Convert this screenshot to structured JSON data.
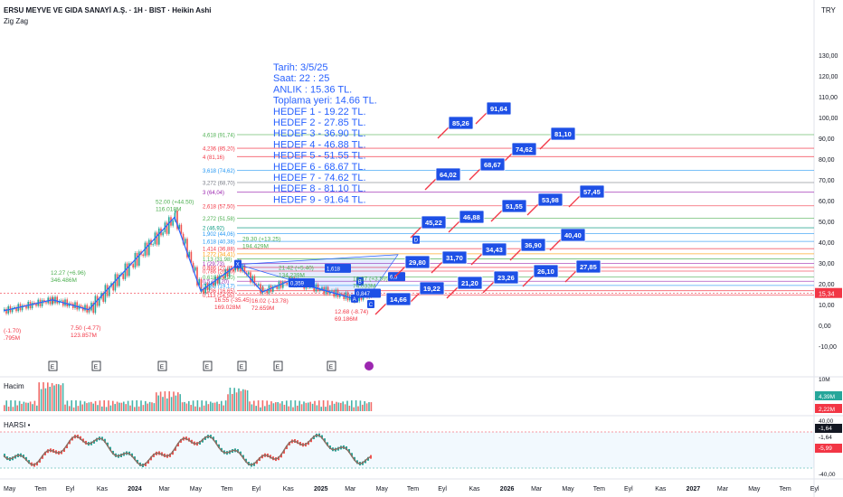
{
  "header": {
    "title": "ERSU MEYVE VE GIDA SANAYİ A.Ş. · 1H · BIST · Heikin Ashi",
    "indicator": "Zig Zag",
    "currency": "TRY"
  },
  "panels": {
    "volume_label": "Hacim",
    "harsi_label": "HARSI •"
  },
  "colors": {
    "up": "#26a69a",
    "down": "#ef5350",
    "zigzag": "#2962ff",
    "annotation_text": "#2962ff",
    "price_badge": "#f23645",
    "target_box": "#1e50e6"
  },
  "price_axis": {
    "ticks": [
      "130,00",
      "120,00",
      "110,00",
      "100,00",
      "90,00",
      "80,00",
      "70,00",
      "60,00",
      "50,00",
      "40,00",
      "30,00",
      "20,00",
      "10,00",
      "0,00",
      "-10,00"
    ],
    "current_price": "15,34"
  },
  "volume_axis": {
    "ticks": [
      "4,39M",
      "2,22M"
    ],
    "top_label": "10M"
  },
  "harsi_axis": {
    "ticks": [
      "40,00",
      "-1,64",
      "-1,64",
      "-5,99",
      "-40,00"
    ]
  },
  "time_axis": [
    "May",
    "Tem",
    "Eyl",
    "Kas",
    "2024",
    "Mar",
    "May",
    "Tem",
    "Eyl",
    "Kas",
    "2025",
    "Mar",
    "May",
    "Tem",
    "Eyl",
    "Kas",
    "2026",
    "Mar",
    "May",
    "Tem",
    "Eyl",
    "Kas",
    "2027",
    "Mar",
    "May",
    "Tem",
    "Eyl"
  ],
  "info_block": [
    "Tarih:   3/5/25",
    "Saat:      22 : 25",
    "ANLIK :  15.36 TL.",
    "Toplama yeri: 14.66 TL.",
    "HEDEF 1 - 19.22 TL.",
    "HEDEF 2 - 27.85 TL.",
    "HEDEF 3 - 36.90 TL.",
    "HEDEF 4 - 46.88 TL.",
    "HEDEF 5 - 51.55 TL.",
    "HEDEF 6 - 68.67 TL.",
    "HEDEF 7 - 74.62 TL.",
    "HEDEF 8 - 81.10 TL.",
    "HEDEF 9 - 91.64 TL."
  ],
  "fib_labels": [
    {
      "text": "4,618 (91,74)",
      "color": "#4caf50"
    },
    {
      "text": "4,236 (85,20)",
      "color": "#f23645"
    },
    {
      "text": "4 (81,16)",
      "color": "#f23645"
    },
    {
      "text": "3,618 (74,62)",
      "color": "#2196f3"
    },
    {
      "text": "3,272 (68,70)",
      "color": "#787b86"
    },
    {
      "text": "3 (64,04)",
      "color": "#9c27b0"
    },
    {
      "text": "2,618 (57,50)",
      "color": "#f23645"
    },
    {
      "text": "2,272 (51,58)",
      "color": "#4caf50"
    },
    {
      "text": "2 (46,92)",
      "color": "#089981"
    },
    {
      "text": "1,902 (44,06)",
      "color": "#2196f3"
    },
    {
      "text": "1,618 (40,38)",
      "color": "#2196f3"
    },
    {
      "text": "1,414 (36,88)",
      "color": "#f23645"
    },
    {
      "text": "1,272 (34,41)",
      "color": "#ff9800"
    },
    {
      "text": "1,13 (31,98)",
      "color": "#4caf50"
    },
    {
      "text": "1 (29,73)",
      "color": "#9c27b0"
    },
    {
      "text": "0,886 (27,85)",
      "color": "#f23645"
    },
    {
      "text": "0,786 (26,10)",
      "color": "#f23645"
    },
    {
      "text": "0,618 (23,20)",
      "color": "#4caf50"
    },
    {
      "text": "0,5 (21,20)",
      "color": "#9c27b0"
    },
    {
      "text": "0,382 (19,17)",
      "color": "#2196f3"
    },
    {
      "text": "0,236 (16,65)",
      "color": "#f23645"
    },
    {
      "text": "0,113 (14,55)",
      "color": "#f23645"
    }
  ],
  "target_boxes": [
    "91,64",
    "85,26",
    "81,10",
    "74,62",
    "68,67",
    "64,02",
    "57,45",
    "53,98",
    "51,55",
    "46,88",
    "45,22",
    "40,40",
    "36,90",
    "34,43",
    "31,70",
    "29,80",
    "27,85",
    "26,10",
    "23,26",
    "21,20",
    "19,22",
    "14,66"
  ],
  "zigzag_labels": [
    {
      "text": "12.27 (+6.96)\n346.486M",
      "color": "#4caf50"
    },
    {
      "text": "52.00 (+44.50)\n116.018M",
      "color": "#4caf50"
    },
    {
      "text": "7.50 (-4.77)\n123.857M",
      "color": "#f23645"
    },
    {
      "text": "(-1.70)\n.795M",
      "color": "#f23645"
    },
    {
      "text": "16.55 (-35.45)\n169.028M",
      "color": "#f23645"
    },
    {
      "text": "16.02 (-13.78)\n72.659M",
      "color": "#f23645"
    },
    {
      "text": "12.68 (-8.74)\n69.186M",
      "color": "#f23645"
    },
    {
      "text": "21.42 (+5.40)\n134.239M",
      "color": "#4caf50"
    },
    {
      "text": "29.30 (+13.25)\n194.429M",
      "color": "#4caf50"
    },
    {
      "text": "16.27 (+3.59)\n74.033M",
      "color": "#4caf50"
    }
  ],
  "pattern_labels": [
    "X",
    "A",
    "B",
    "C",
    "D"
  ],
  "pattern_values": [
    "1,618",
    "0,359",
    "6,6",
    "0,847"
  ],
  "event_markers": [
    "E",
    "E",
    "E",
    "E",
    "E",
    "E",
    "E"
  ],
  "chart_data": {
    "type": "candlestick",
    "symbol": "ERSU",
    "timeframe": "1H",
    "zigzag": [
      {
        "t": "2023-05",
        "price": 7.0
      },
      {
        "t": "2023-08",
        "price": 12.27
      },
      {
        "t": "2023-10",
        "price": 7.5
      },
      {
        "t": "2024-05",
        "price": 52.0
      },
      {
        "t": "2024-07",
        "price": 16.55
      },
      {
        "t": "2024-08",
        "price": 29.3
      },
      {
        "t": "2024-10",
        "price": 16.02
      },
      {
        "t": "2024-11",
        "price": 21.42
      },
      {
        "t": "2025-04",
        "price": 12.68
      },
      {
        "t": "2025-05",
        "price": 15.36
      }
    ],
    "targets": [
      19.22,
      27.85,
      36.9,
      46.88,
      51.55,
      68.67,
      74.62,
      81.1,
      91.64
    ],
    "current_price": 15.34,
    "accumulation_price": 14.66,
    "ylim": [
      -10,
      130
    ]
  }
}
